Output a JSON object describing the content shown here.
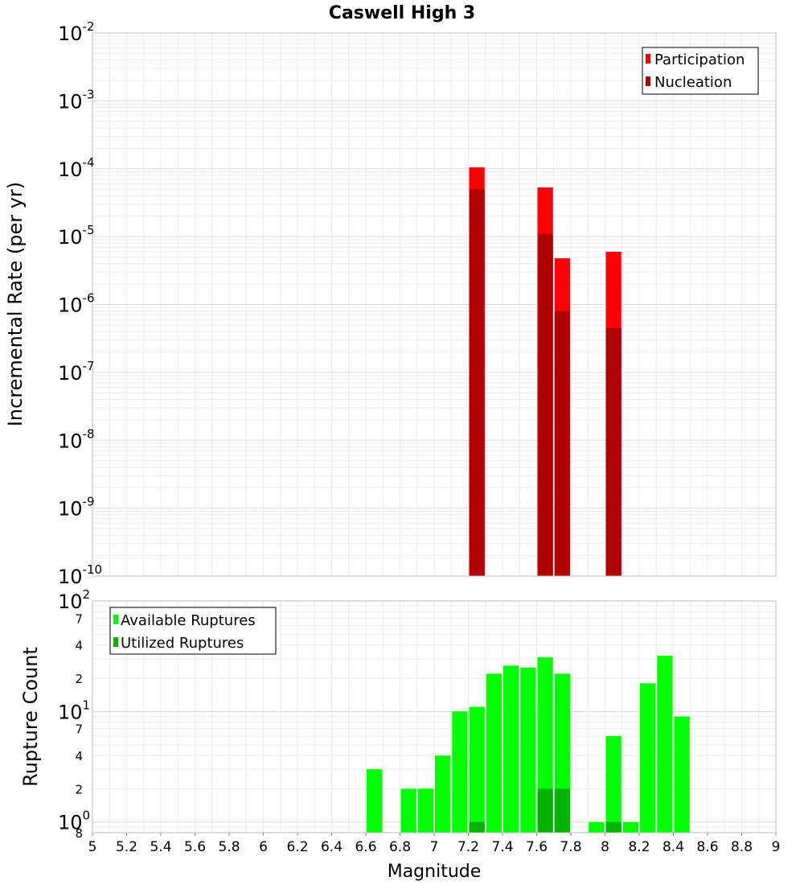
{
  "chart_data": [
    {
      "type": "bar",
      "title": "Caswell High 3",
      "xlabel": "Magnitude",
      "ylabel": "Incremental Rate (per yr)",
      "xlim": [
        5,
        9
      ],
      "ylim": [
        1e-10,
        0.01
      ],
      "y_scale": "log",
      "grid": true,
      "legend_position": "top-right",
      "x_ticks": [
        "5",
        "5.2",
        "5.4",
        "5.6",
        "5.8",
        "6",
        "6.2",
        "6.4",
        "6.6",
        "6.8",
        "7",
        "7.2",
        "7.4",
        "7.6",
        "7.8",
        "8",
        "8.2",
        "8.4",
        "8.6",
        "8.8",
        "9"
      ],
      "y_ticks": [
        {
          "base": "10",
          "exp": "-2",
          "value": 0.01
        },
        {
          "base": "10",
          "exp": "-3",
          "value": 0.001
        },
        {
          "base": "10",
          "exp": "-4",
          "value": 0.0001
        },
        {
          "base": "10",
          "exp": "-5",
          "value": 1e-05
        },
        {
          "base": "10",
          "exp": "-6",
          "value": 1e-06
        },
        {
          "base": "10",
          "exp": "-7",
          "value": 1e-07
        },
        {
          "base": "10",
          "exp": "-8",
          "value": 1e-08
        },
        {
          "base": "10",
          "exp": "-9",
          "value": 1e-09
        },
        {
          "base": "10",
          "exp": "-10",
          "value": 1e-10
        }
      ],
      "series": [
        {
          "name": "Participation",
          "color": "#ff0000",
          "points": [
            {
              "x": 7.25,
              "y": 0.000105
            },
            {
              "x": 7.65,
              "y": 5.3e-05
            },
            {
              "x": 7.75,
              "y": 4.8e-06
            },
            {
              "x": 8.05,
              "y": 6e-06
            }
          ]
        },
        {
          "name": "Nucleation",
          "color": "#b00000",
          "points": [
            {
              "x": 7.25,
              "y": 5e-05
            },
            {
              "x": 7.65,
              "y": 1.1e-05
            },
            {
              "x": 7.75,
              "y": 8e-07
            },
            {
              "x": 8.05,
              "y": 4.5e-07
            }
          ]
        }
      ]
    },
    {
      "type": "bar",
      "xlabel": "Magnitude",
      "ylabel": "Rupture Count",
      "xlim": [
        5,
        9
      ],
      "ylim": [
        0.8,
        100
      ],
      "y_scale": "log",
      "grid": true,
      "legend_position": "top-left",
      "x_ticks": [
        "5",
        "5.2",
        "5.4",
        "5.6",
        "5.8",
        "6",
        "6.2",
        "6.4",
        "6.6",
        "6.8",
        "7",
        "7.2",
        "7.4",
        "7.6",
        "7.8",
        "8",
        "8.2",
        "8.4",
        "8.6",
        "8.8",
        "9"
      ],
      "y_ticks": [
        {
          "base": "10",
          "exp": "2",
          "value": 100
        },
        {
          "base": "10",
          "exp": "1",
          "value": 10
        },
        {
          "base": "10",
          "exp": "0",
          "value": 1
        }
      ],
      "y_minor_ticks": [
        {
          "label": "7",
          "value": 70
        },
        {
          "label": "4",
          "value": 40
        },
        {
          "label": "2",
          "value": 20
        },
        {
          "label": "7",
          "value": 7
        },
        {
          "label": "4",
          "value": 4
        },
        {
          "label": "2",
          "value": 2
        },
        {
          "label": "8",
          "value": 0.8
        }
      ],
      "series": [
        {
          "name": "Available Ruptures",
          "color": "#00ff00",
          "points": [
            {
              "x": 6.65,
              "y": 3
            },
            {
              "x": 6.85,
              "y": 2
            },
            {
              "x": 6.95,
              "y": 2
            },
            {
              "x": 7.05,
              "y": 4
            },
            {
              "x": 7.15,
              "y": 10
            },
            {
              "x": 7.25,
              "y": 11
            },
            {
              "x": 7.35,
              "y": 22
            },
            {
              "x": 7.45,
              "y": 26
            },
            {
              "x": 7.55,
              "y": 25
            },
            {
              "x": 7.65,
              "y": 31
            },
            {
              "x": 7.75,
              "y": 22
            },
            {
              "x": 7.95,
              "y": 1
            },
            {
              "x": 8.05,
              "y": 6
            },
            {
              "x": 8.15,
              "y": 1
            },
            {
              "x": 8.25,
              "y": 18
            },
            {
              "x": 8.35,
              "y": 32
            },
            {
              "x": 8.45,
              "y": 9
            }
          ]
        },
        {
          "name": "Utilized Ruptures",
          "color": "#00b400",
          "points": [
            {
              "x": 7.25,
              "y": 1
            },
            {
              "x": 7.65,
              "y": 2
            },
            {
              "x": 7.75,
              "y": 2
            },
            {
              "x": 8.05,
              "y": 1
            }
          ]
        }
      ]
    }
  ]
}
